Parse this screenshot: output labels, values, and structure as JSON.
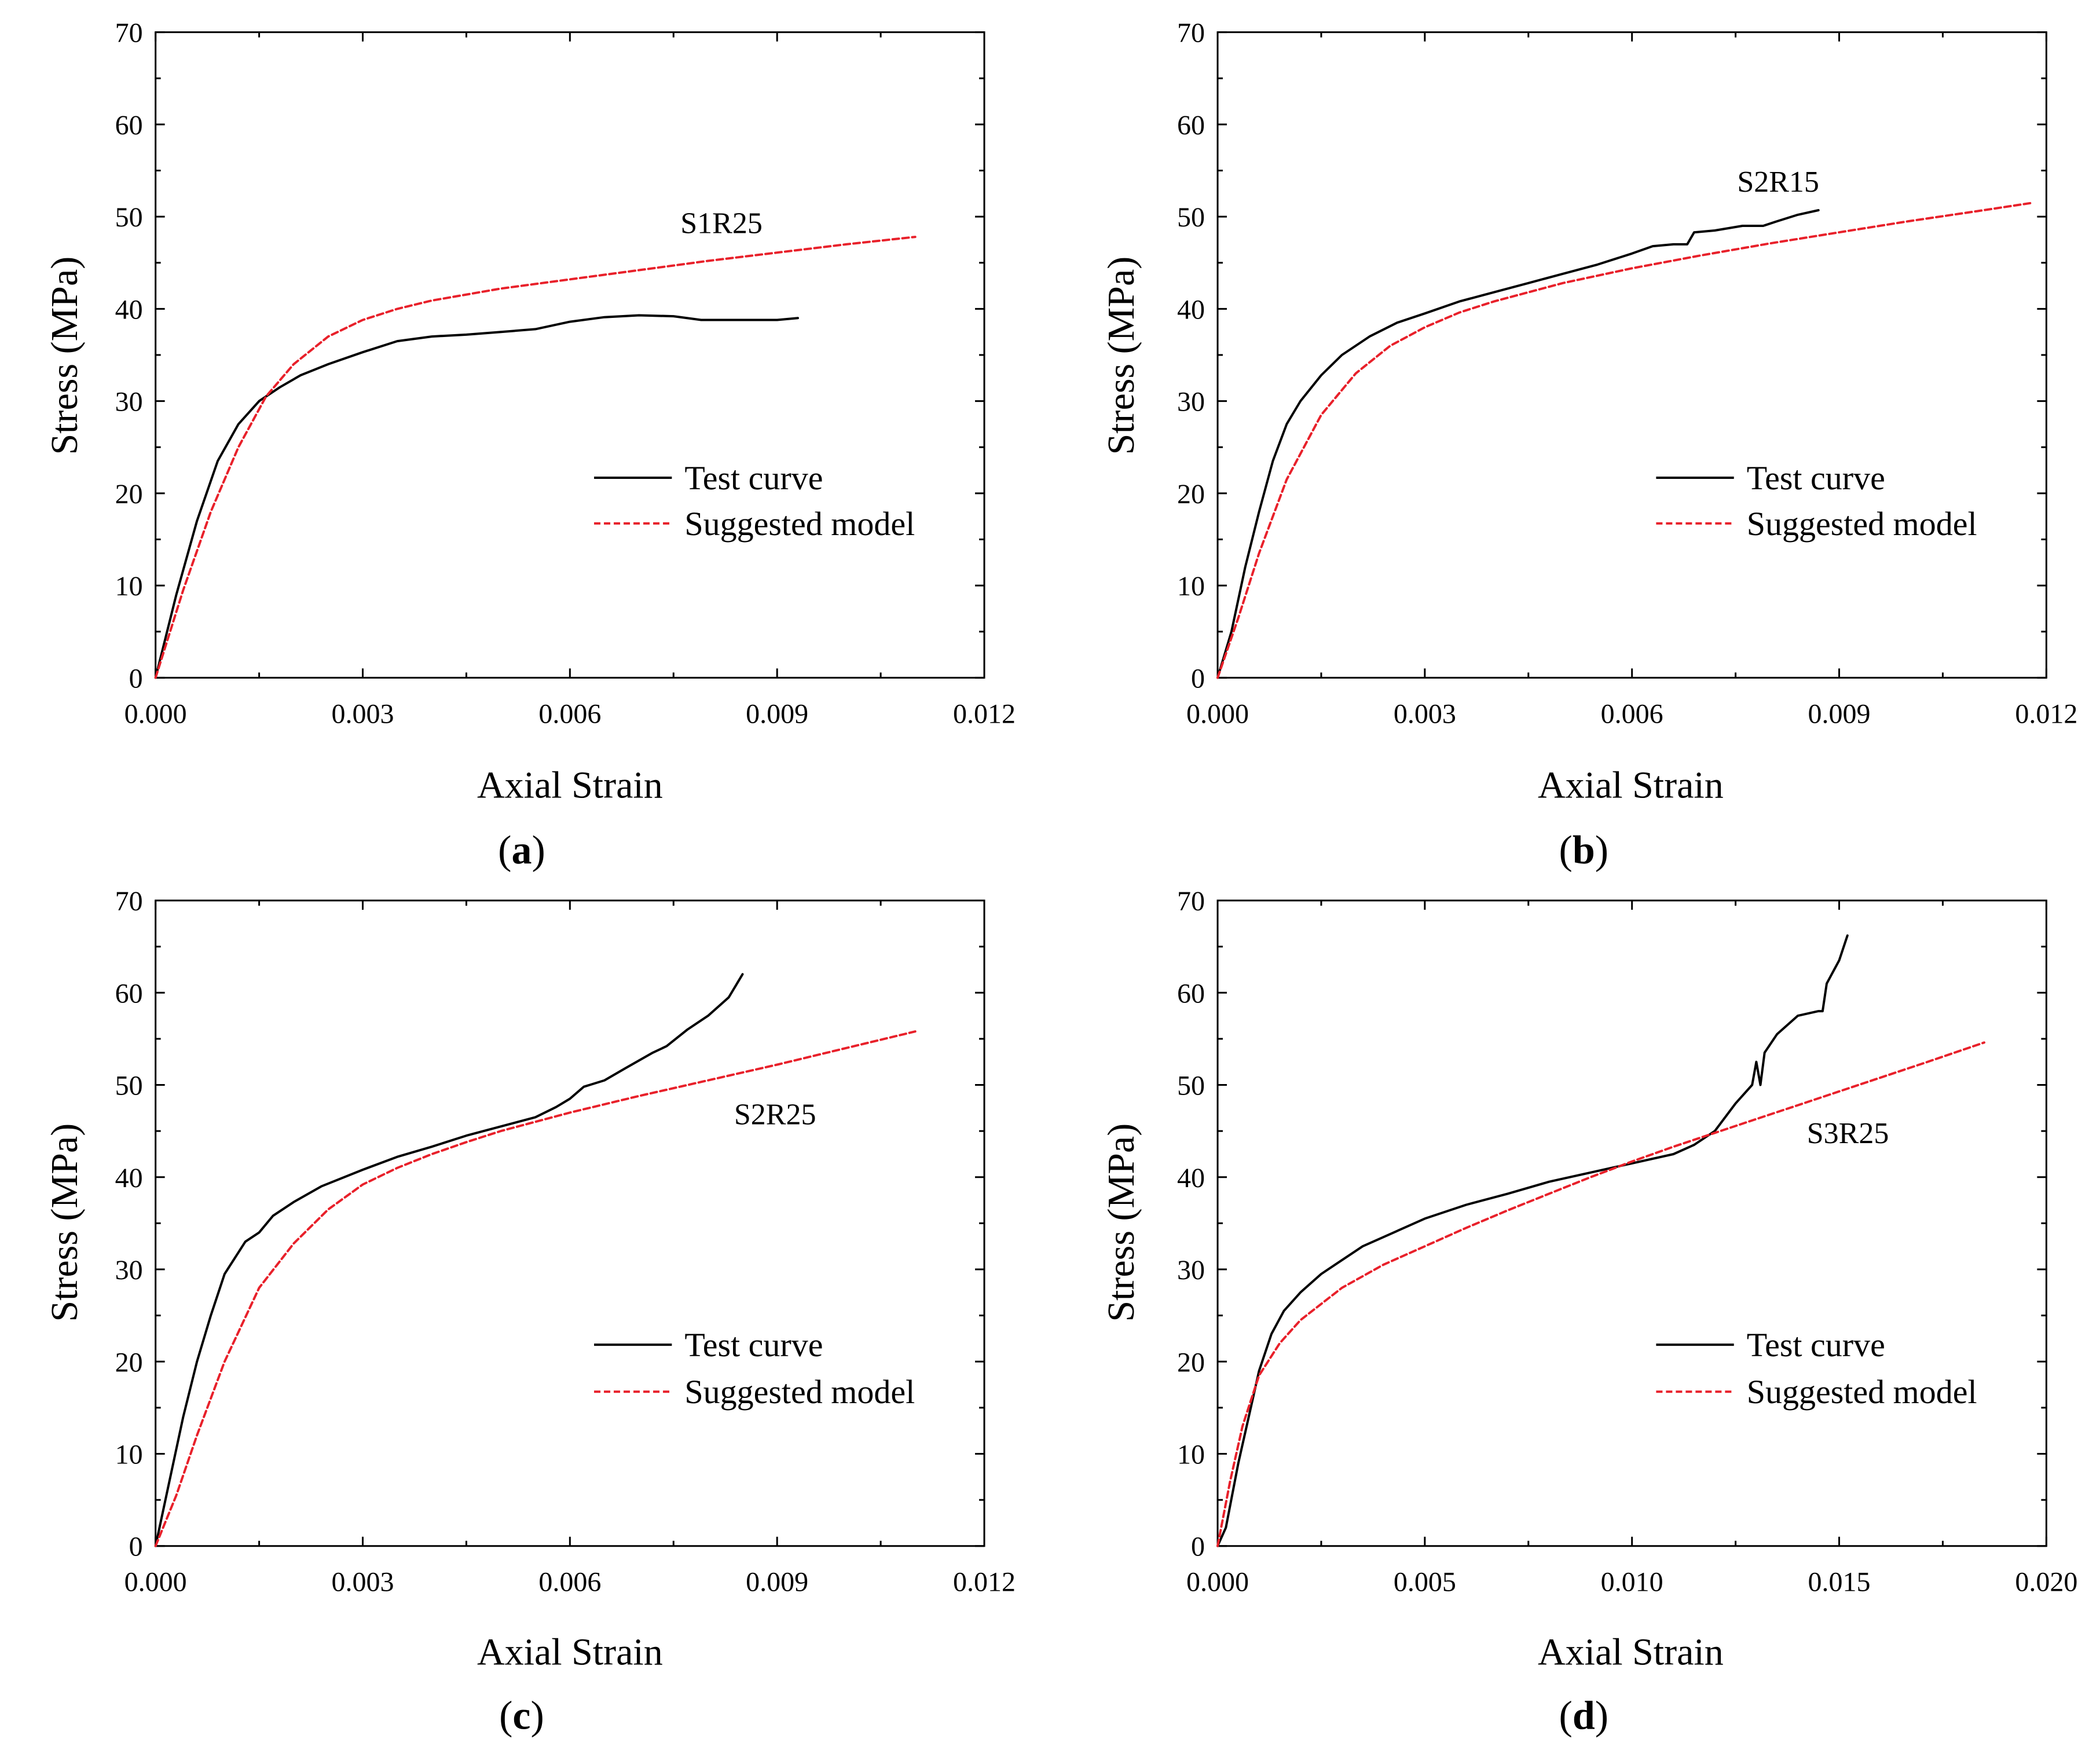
{
  "figure": {
    "legend_labels": [
      "Test curve",
      "Suggested model"
    ]
  },
  "chart_data": [
    {
      "type": "line",
      "panel": "a",
      "caption": "(a)",
      "caption_letter": "a",
      "annotation": "S1R25",
      "xlabel": "Axial Strain",
      "ylabel": "Stress (MPa)",
      "xlim": [
        0,
        0.012
      ],
      "ylim": [
        0,
        70
      ],
      "xticks": [
        "0.000",
        "0.003",
        "0.006",
        "0.009",
        "0.012"
      ],
      "yticks": [
        "0",
        "10",
        "20",
        "30",
        "40",
        "50",
        "60",
        "70"
      ],
      "legend": "right-middle",
      "series": [
        {
          "name": "Test curve",
          "color": "#000000",
          "style": "solid",
          "x": [
            0,
            0.0003,
            0.0006,
            0.0009,
            0.0012,
            0.0015,
            0.0018,
            0.0021,
            0.0025,
            0.003,
            0.0035,
            0.004,
            0.0045,
            0.005,
            0.0055,
            0.006,
            0.0065,
            0.007,
            0.0075,
            0.0079,
            0.0085,
            0.009,
            0.0093
          ],
          "y": [
            0,
            9,
            17,
            23.5,
            27.5,
            30,
            31.5,
            32.8,
            34,
            35.3,
            36.5,
            37,
            37.2,
            37.5,
            37.8,
            38.6,
            39.1,
            39.3,
            39.2,
            38.8,
            38.8,
            38.8,
            39
          ]
        },
        {
          "name": "Suggested model",
          "color": "#e8202a",
          "style": "dashed",
          "x": [
            0,
            0.0004,
            0.0008,
            0.0012,
            0.0016,
            0.002,
            0.0025,
            0.003,
            0.0035,
            0.004,
            0.005,
            0.006,
            0.007,
            0.008,
            0.009,
            0.01,
            0.011
          ],
          "y": [
            0,
            9.5,
            18,
            25,
            30.5,
            34,
            37,
            38.8,
            40,
            40.9,
            42.2,
            43.2,
            44.2,
            45.2,
            46.1,
            47,
            47.8
          ]
        }
      ]
    },
    {
      "type": "line",
      "panel": "b",
      "caption": "(b)",
      "caption_letter": "b",
      "annotation": "S2R15",
      "xlabel": "Axial Strain",
      "ylabel": "Stress (MPa)",
      "xlim": [
        0,
        0.012
      ],
      "ylim": [
        0,
        70
      ],
      "xticks": [
        "0.000",
        "0.003",
        "0.006",
        "0.009",
        "0.012"
      ],
      "yticks": [
        "0",
        "10",
        "20",
        "30",
        "40",
        "50",
        "60",
        "70"
      ],
      "legend": "right-middle",
      "series": [
        {
          "name": "Test curve",
          "color": "#000000",
          "style": "solid",
          "x": [
            0,
            0.0002,
            0.0004,
            0.0006,
            0.0008,
            0.001,
            0.0012,
            0.0015,
            0.0018,
            0.0022,
            0.0026,
            0.003,
            0.0035,
            0.004,
            0.0045,
            0.005,
            0.0055,
            0.006,
            0.0063,
            0.0066,
            0.0068,
            0.0069,
            0.0072,
            0.0076,
            0.0079,
            0.0081,
            0.0084,
            0.0087
          ],
          "y": [
            0,
            5,
            12,
            18,
            23.5,
            27.5,
            30,
            32.8,
            35,
            37,
            38.5,
            39.5,
            40.8,
            41.8,
            42.8,
            43.8,
            44.8,
            46,
            46.8,
            47,
            47,
            48.3,
            48.5,
            49,
            49,
            49.5,
            50.2,
            50.7
          ]
        },
        {
          "name": "Suggested model",
          "color": "#e8202a",
          "style": "dashed",
          "x": [
            0,
            0.0003,
            0.0006,
            0.001,
            0.0015,
            0.002,
            0.0025,
            0.003,
            0.0035,
            0.004,
            0.005,
            0.006,
            0.007,
            0.008,
            0.009,
            0.01,
            0.011,
            0.0118
          ],
          "y": [
            0,
            6.5,
            13.5,
            21.5,
            28.5,
            33,
            36,
            38,
            39.6,
            40.8,
            42.8,
            44.4,
            45.8,
            47.1,
            48.3,
            49.5,
            50.6,
            51.5
          ]
        }
      ]
    },
    {
      "type": "line",
      "panel": "c",
      "caption": "(c)",
      "caption_letter": "c",
      "annotation": "S2R25",
      "xlabel": "Axial Strain",
      "ylabel": "Stress (MPa)",
      "xlim": [
        0,
        0.012
      ],
      "ylim": [
        0,
        70
      ],
      "xticks": [
        "0.000",
        "0.003",
        "0.006",
        "0.009",
        "0.012"
      ],
      "yticks": [
        "0",
        "10",
        "20",
        "30",
        "40",
        "50",
        "60",
        "70"
      ],
      "legend": "right-middle",
      "series": [
        {
          "name": "Test curve",
          "color": "#000000",
          "style": "solid",
          "x": [
            0,
            0.0002,
            0.0004,
            0.0006,
            0.0008,
            0.001,
            0.0013,
            0.0015,
            0.0017,
            0.002,
            0.0024,
            0.003,
            0.0035,
            0.004,
            0.0045,
            0.005,
            0.0055,
            0.0058,
            0.006,
            0.0062,
            0.0065,
            0.0068,
            0.0072,
            0.0074,
            0.0077,
            0.008,
            0.0083,
            0.0085
          ],
          "y": [
            0,
            7,
            14,
            20,
            25,
            29.5,
            33,
            34,
            35.8,
            37.3,
            39,
            40.8,
            42.2,
            43.3,
            44.5,
            45.5,
            46.5,
            47.6,
            48.5,
            49.8,
            50.5,
            51.8,
            53.5,
            54.2,
            56,
            57.5,
            59.5,
            62
          ]
        },
        {
          "name": "Suggested model",
          "color": "#e8202a",
          "style": "dashed",
          "x": [
            0,
            0.0003,
            0.0006,
            0.001,
            0.0015,
            0.002,
            0.0025,
            0.003,
            0.0035,
            0.004,
            0.0045,
            0.005,
            0.006,
            0.007,
            0.008,
            0.009,
            0.01,
            0.011
          ],
          "y": [
            0,
            5.5,
            12,
            20,
            28,
            32.8,
            36.5,
            39.2,
            41,
            42.5,
            43.8,
            45,
            47,
            48.8,
            50.5,
            52.2,
            54,
            55.8
          ]
        }
      ]
    },
    {
      "type": "line",
      "panel": "d",
      "caption": "(d)",
      "caption_letter": "d",
      "annotation": "S3R25",
      "xlabel": "Axial Strain",
      "ylabel": "Stress (MPa)",
      "xlim": [
        0,
        0.02
      ],
      "ylim": [
        0,
        70
      ],
      "xticks": [
        "0.000",
        "0.005",
        "0.010",
        "0.015",
        "0.020"
      ],
      "yticks": [
        "0",
        "10",
        "20",
        "30",
        "40",
        "50",
        "60",
        "70"
      ],
      "legend": "right-middle",
      "series": [
        {
          "name": "Test curve",
          "color": "#000000",
          "style": "solid",
          "x": [
            0,
            0.0002,
            0.0005,
            0.0008,
            0.001,
            0.0013,
            0.0016,
            0.002,
            0.0025,
            0.003,
            0.0035,
            0.004,
            0.0045,
            0.005,
            0.006,
            0.007,
            0.008,
            0.009,
            0.01,
            0.011,
            0.0115,
            0.012,
            0.0125,
            0.0129,
            0.013,
            0.0131,
            0.0132,
            0.0135,
            0.014,
            0.0145,
            0.0146,
            0.0147,
            0.015,
            0.0152
          ],
          "y": [
            0,
            2,
            9,
            15,
            19,
            23,
            25.5,
            27.5,
            29.5,
            31,
            32.5,
            33.5,
            34.5,
            35.5,
            37,
            38.2,
            39.5,
            40.5,
            41.5,
            42.5,
            43.5,
            45,
            48,
            50,
            52.5,
            50,
            53.5,
            55.5,
            57.5,
            58,
            58,
            61,
            63.5,
            66.2
          ]
        },
        {
          "name": "Suggested model",
          "color": "#e8202a",
          "style": "dashed",
          "x": [
            0,
            0.0003,
            0.0006,
            0.001,
            0.0015,
            0.002,
            0.003,
            0.004,
            0.005,
            0.006,
            0.007,
            0.008,
            0.009,
            0.01,
            0.011,
            0.012,
            0.013,
            0.014,
            0.015,
            0.016,
            0.017,
            0.0185
          ],
          "y": [
            0,
            7,
            13,
            18.5,
            22,
            24.5,
            28,
            30.5,
            32.5,
            34.5,
            36.4,
            38.2,
            40,
            41.7,
            43.3,
            44.8,
            46.3,
            47.8,
            49.3,
            50.8,
            52.3,
            54.6
          ]
        }
      ]
    }
  ]
}
